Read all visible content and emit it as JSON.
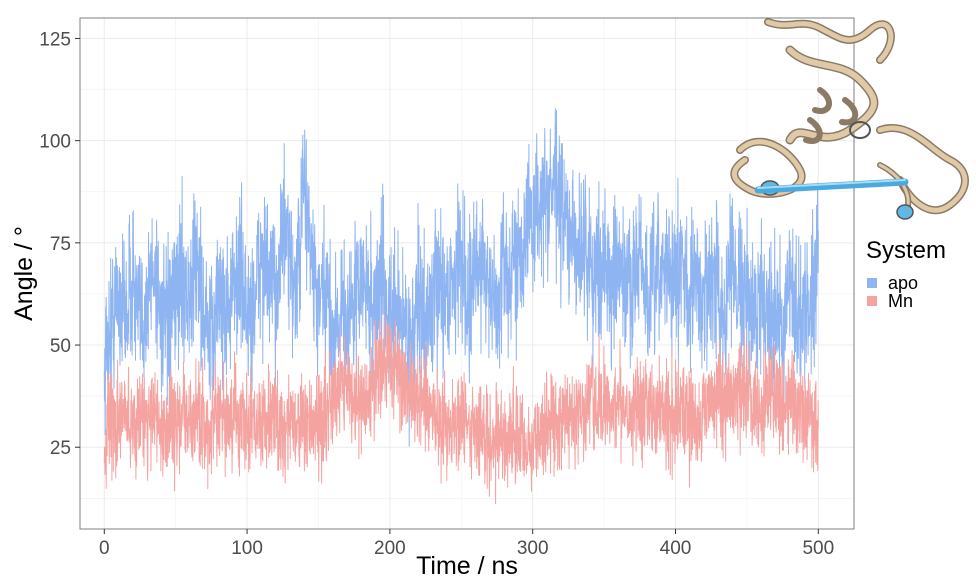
{
  "chart_data": {
    "type": "line",
    "title": "",
    "xlabel": "Time / ns",
    "ylabel": "Angle / °",
    "xlim": [
      -17,
      525
    ],
    "ylim": [
      5,
      130
    ],
    "x_ticks": [
      0,
      100,
      200,
      300,
      400,
      500
    ],
    "y_ticks": [
      25,
      50,
      75,
      100,
      125
    ],
    "grid": true,
    "legend": {
      "title": "System",
      "position": "right",
      "entries": [
        "apo",
        "Mn"
      ]
    },
    "series": [
      {
        "name": "apo",
        "color": "#8fb4f2",
        "x": [
          0,
          5,
          10,
          15,
          20,
          25,
          30,
          35,
          40,
          45,
          50,
          55,
          60,
          65,
          70,
          75,
          80,
          85,
          90,
          95,
          100,
          105,
          110,
          115,
          120,
          125,
          130,
          135,
          140,
          145,
          150,
          155,
          160,
          165,
          170,
          175,
          180,
          185,
          190,
          195,
          200,
          205,
          210,
          215,
          220,
          225,
          230,
          235,
          240,
          245,
          250,
          255,
          260,
          265,
          270,
          275,
          280,
          285,
          290,
          295,
          300,
          305,
          310,
          315,
          320,
          325,
          330,
          335,
          340,
          345,
          350,
          355,
          360,
          365,
          370,
          375,
          380,
          385,
          390,
          395,
          400,
          405,
          410,
          415,
          420,
          425,
          430,
          435,
          440,
          445,
          450,
          455,
          460,
          465,
          470,
          475,
          480,
          485,
          490,
          495,
          500
        ],
        "values": [
          45,
          55,
          62,
          58,
          66,
          54,
          61,
          70,
          57,
          52,
          63,
          68,
          60,
          74,
          55,
          50,
          64,
          58,
          62,
          70,
          56,
          60,
          72,
          66,
          62,
          80,
          68,
          64,
          90,
          72,
          58,
          62,
          52,
          60,
          56,
          60,
          66,
          62,
          58,
          68,
          54,
          58,
          56,
          50,
          60,
          55,
          60,
          66,
          62,
          68,
          72,
          60,
          66,
          74,
          62,
          58,
          70,
          66,
          74,
          78,
          80,
          86,
          84,
          90,
          82,
          78,
          72,
          76,
          70,
          66,
          74,
          62,
          68,
          64,
          66,
          72,
          60,
          64,
          68,
          70,
          64,
          70,
          62,
          66,
          60,
          68,
          62,
          58,
          72,
          66,
          60,
          56,
          64,
          58,
          60,
          52,
          62,
          56,
          58,
          60,
          78
        ]
      },
      {
        "name": "Mn",
        "color": "#f4a3a0",
        "x": [
          0,
          5,
          10,
          15,
          20,
          25,
          30,
          35,
          40,
          45,
          50,
          55,
          60,
          65,
          70,
          75,
          80,
          85,
          90,
          95,
          100,
          105,
          110,
          115,
          120,
          125,
          130,
          135,
          140,
          145,
          150,
          155,
          160,
          165,
          170,
          175,
          180,
          185,
          190,
          195,
          200,
          205,
          210,
          215,
          220,
          225,
          230,
          235,
          240,
          245,
          250,
          255,
          260,
          265,
          270,
          275,
          280,
          285,
          290,
          295,
          300,
          305,
          310,
          315,
          320,
          325,
          330,
          335,
          340,
          345,
          350,
          355,
          360,
          365,
          370,
          375,
          380,
          385,
          390,
          395,
          400,
          405,
          410,
          415,
          420,
          425,
          430,
          435,
          440,
          445,
          450,
          455,
          460,
          465,
          470,
          475,
          480,
          485,
          490,
          495,
          500
        ],
        "values": [
          25,
          32,
          30,
          34,
          29,
          33,
          31,
          35,
          28,
          32,
          30,
          33,
          29,
          34,
          31,
          28,
          32,
          30,
          33,
          31,
          29,
          32,
          30,
          34,
          31,
          29,
          33,
          30,
          32,
          28,
          31,
          33,
          36,
          44,
          40,
          38,
          34,
          36,
          42,
          48,
          46,
          44,
          40,
          38,
          36,
          34,
          32,
          33,
          30,
          32,
          31,
          29,
          30,
          28,
          27,
          29,
          26,
          28,
          27,
          25,
          26,
          28,
          30,
          32,
          31,
          33,
          34,
          32,
          36,
          34,
          35,
          33,
          38,
          36,
          34,
          37,
          35,
          33,
          36,
          34,
          32,
          35,
          33,
          30,
          34,
          36,
          38,
          35,
          37,
          39,
          36,
          38,
          34,
          40,
          37,
          35,
          38,
          36,
          34,
          32,
          30
        ]
      }
    ]
  }
}
